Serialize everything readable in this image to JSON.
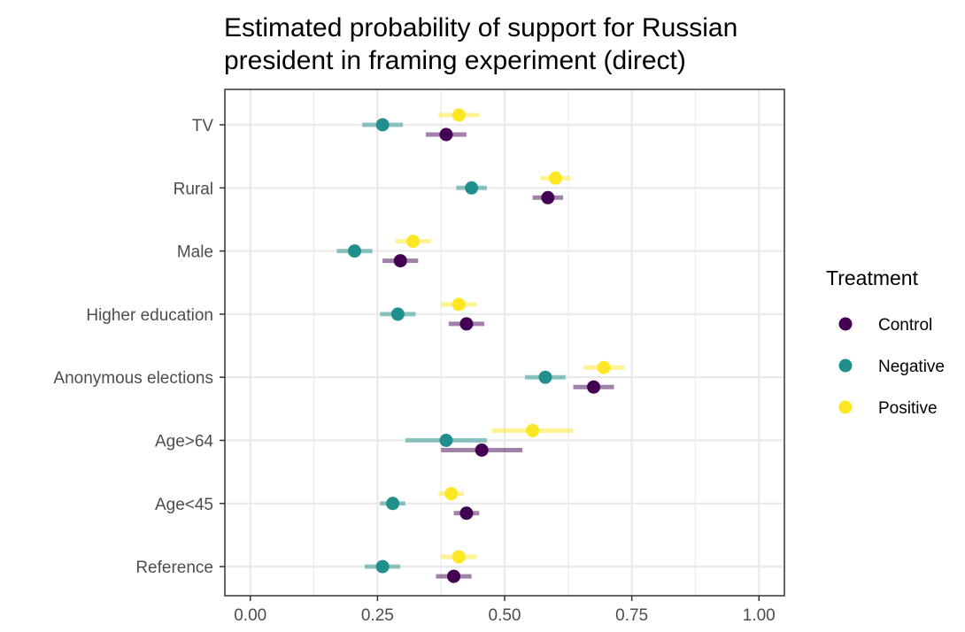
{
  "chart_data": {
    "type": "scatter",
    "title_lines": [
      "Estimated probability of support for Russian",
      "president in framing experiment (direct)"
    ],
    "xlabel": "",
    "ylabel": "",
    "xlim": [
      -0.05,
      1.05
    ],
    "x_ticks": [
      0.0,
      0.25,
      0.5,
      0.75,
      1.0
    ],
    "x_tick_labels": [
      "0.00",
      "0.25",
      "0.50",
      "0.75",
      "1.00"
    ],
    "categories": [
      "TV",
      "Rural",
      "Male",
      "Higher education",
      "Anonymous elections",
      "Age>64",
      "Age<45",
      "Reference"
    ],
    "grid": true,
    "legend": {
      "title": "Treatment",
      "placement": "right"
    },
    "series": [
      {
        "name": "Positive",
        "color": "#FDE725",
        "points": [
          {
            "category": "TV",
            "x": 0.41,
            "low": 0.37,
            "high": 0.45
          },
          {
            "category": "Rural",
            "x": 0.6,
            "low": 0.57,
            "high": 0.63
          },
          {
            "category": "Male",
            "x": 0.32,
            "low": 0.285,
            "high": 0.355
          },
          {
            "category": "Higher education",
            "x": 0.41,
            "low": 0.375,
            "high": 0.445
          },
          {
            "category": "Anonymous elections",
            "x": 0.695,
            "low": 0.655,
            "high": 0.735
          },
          {
            "category": "Age>64",
            "x": 0.555,
            "low": 0.475,
            "high": 0.635
          },
          {
            "category": "Age<45",
            "x": 0.395,
            "low": 0.37,
            "high": 0.42
          },
          {
            "category": "Reference",
            "x": 0.41,
            "low": 0.375,
            "high": 0.445
          }
        ]
      },
      {
        "name": "Negative",
        "color": "#21908C",
        "points": [
          {
            "category": "TV",
            "x": 0.26,
            "low": 0.22,
            "high": 0.3
          },
          {
            "category": "Rural",
            "x": 0.435,
            "low": 0.405,
            "high": 0.465
          },
          {
            "category": "Male",
            "x": 0.205,
            "low": 0.17,
            "high": 0.24
          },
          {
            "category": "Higher education",
            "x": 0.29,
            "low": 0.255,
            "high": 0.325
          },
          {
            "category": "Anonymous elections",
            "x": 0.58,
            "low": 0.54,
            "high": 0.62
          },
          {
            "category": "Age>64",
            "x": 0.385,
            "low": 0.305,
            "high": 0.465
          },
          {
            "category": "Age<45",
            "x": 0.28,
            "low": 0.255,
            "high": 0.305
          },
          {
            "category": "Reference",
            "x": 0.26,
            "low": 0.225,
            "high": 0.295
          }
        ]
      },
      {
        "name": "Control",
        "color": "#440154",
        "points": [
          {
            "category": "TV",
            "x": 0.385,
            "low": 0.345,
            "high": 0.425
          },
          {
            "category": "Rural",
            "x": 0.585,
            "low": 0.555,
            "high": 0.615
          },
          {
            "category": "Male",
            "x": 0.295,
            "low": 0.26,
            "high": 0.33
          },
          {
            "category": "Higher education",
            "x": 0.425,
            "low": 0.39,
            "high": 0.46
          },
          {
            "category": "Anonymous elections",
            "x": 0.675,
            "low": 0.635,
            "high": 0.715
          },
          {
            "category": "Age>64",
            "x": 0.455,
            "low": 0.375,
            "high": 0.535
          },
          {
            "category": "Age<45",
            "x": 0.425,
            "low": 0.4,
            "high": 0.45
          },
          {
            "category": "Reference",
            "x": 0.4,
            "low": 0.365,
            "high": 0.435
          }
        ]
      }
    ],
    "legend_order": [
      "Control",
      "Negative",
      "Positive"
    ]
  }
}
